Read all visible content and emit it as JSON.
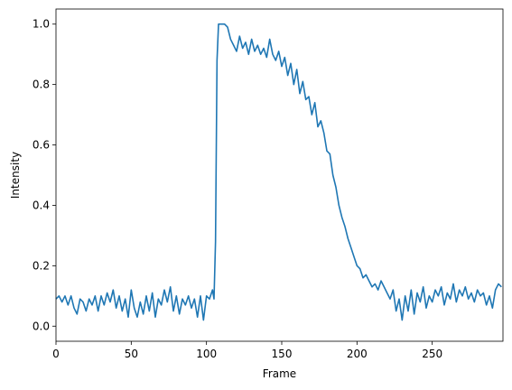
{
  "chart_data": {
    "type": "line",
    "xlabel": "Frame",
    "ylabel": "Intensity",
    "xlim": [
      0,
      297
    ],
    "ylim": [
      -0.05,
      1.05
    ],
    "grid": false,
    "x_ticks": [
      0,
      50,
      100,
      150,
      200,
      250
    ],
    "y_ticks": [
      0.0,
      0.2,
      0.4,
      0.6,
      0.8,
      1.0
    ],
    "x_tick_labels": [
      "0",
      "50",
      "100",
      "150",
      "200",
      "250"
    ],
    "y_tick_labels": [
      "0.0",
      "0.2",
      "0.4",
      "0.6",
      "0.8",
      "1.0"
    ],
    "series": [
      {
        "color": "#1f77b4",
        "x": [
          0,
          2,
          4,
          6,
          8,
          10,
          12,
          14,
          16,
          18,
          20,
          22,
          24,
          26,
          28,
          30,
          32,
          34,
          36,
          38,
          40,
          42,
          44,
          46,
          48,
          50,
          52,
          54,
          56,
          58,
          60,
          62,
          64,
          66,
          68,
          70,
          72,
          74,
          76,
          78,
          80,
          82,
          84,
          86,
          88,
          90,
          92,
          94,
          96,
          98,
          100,
          102,
          104,
          105,
          106,
          107,
          108,
          110,
          112,
          114,
          116,
          118,
          120,
          122,
          124,
          126,
          128,
          130,
          132,
          134,
          136,
          138,
          140,
          142,
          144,
          146,
          148,
          150,
          152,
          154,
          156,
          158,
          160,
          162,
          164,
          166,
          168,
          170,
          172,
          174,
          176,
          178,
          180,
          182,
          184,
          186,
          188,
          190,
          192,
          194,
          196,
          198,
          200,
          202,
          204,
          206,
          208,
          210,
          212,
          214,
          216,
          218,
          220,
          222,
          224,
          226,
          228,
          230,
          232,
          234,
          236,
          238,
          240,
          242,
          244,
          246,
          248,
          250,
          252,
          254,
          256,
          258,
          260,
          262,
          264,
          266,
          268,
          270,
          272,
          274,
          276,
          278,
          280,
          282,
          284,
          286,
          288,
          290,
          292,
          294,
          296
        ],
        "y": [
          0.09,
          0.1,
          0.08,
          0.1,
          0.07,
          0.1,
          0.06,
          0.04,
          0.09,
          0.08,
          0.05,
          0.09,
          0.07,
          0.1,
          0.05,
          0.1,
          0.07,
          0.11,
          0.08,
          0.12,
          0.06,
          0.1,
          0.05,
          0.09,
          0.03,
          0.12,
          0.06,
          0.03,
          0.08,
          0.04,
          0.1,
          0.05,
          0.11,
          0.03,
          0.09,
          0.07,
          0.12,
          0.08,
          0.13,
          0.05,
          0.1,
          0.04,
          0.09,
          0.07,
          0.1,
          0.06,
          0.09,
          0.03,
          0.1,
          0.02,
          0.1,
          0.09,
          0.12,
          0.09,
          0.28,
          0.88,
          1.0,
          1.0,
          1.0,
          0.99,
          0.95,
          0.93,
          0.91,
          0.96,
          0.92,
          0.94,
          0.9,
          0.95,
          0.91,
          0.93,
          0.9,
          0.92,
          0.89,
          0.95,
          0.9,
          0.88,
          0.91,
          0.86,
          0.89,
          0.83,
          0.87,
          0.8,
          0.85,
          0.77,
          0.81,
          0.75,
          0.76,
          0.7,
          0.74,
          0.66,
          0.68,
          0.64,
          0.58,
          0.57,
          0.5,
          0.46,
          0.4,
          0.36,
          0.33,
          0.29,
          0.26,
          0.23,
          0.2,
          0.19,
          0.16,
          0.17,
          0.15,
          0.13,
          0.14,
          0.12,
          0.15,
          0.13,
          0.11,
          0.09,
          0.12,
          0.05,
          0.09,
          0.02,
          0.1,
          0.05,
          0.12,
          0.04,
          0.11,
          0.08,
          0.13,
          0.06,
          0.1,
          0.08,
          0.12,
          0.1,
          0.13,
          0.07,
          0.11,
          0.09,
          0.14,
          0.08,
          0.12,
          0.1,
          0.13,
          0.09,
          0.11,
          0.08,
          0.12,
          0.1,
          0.11,
          0.07,
          0.1,
          0.06,
          0.12,
          0.14,
          0.13
        ]
      }
    ]
  }
}
